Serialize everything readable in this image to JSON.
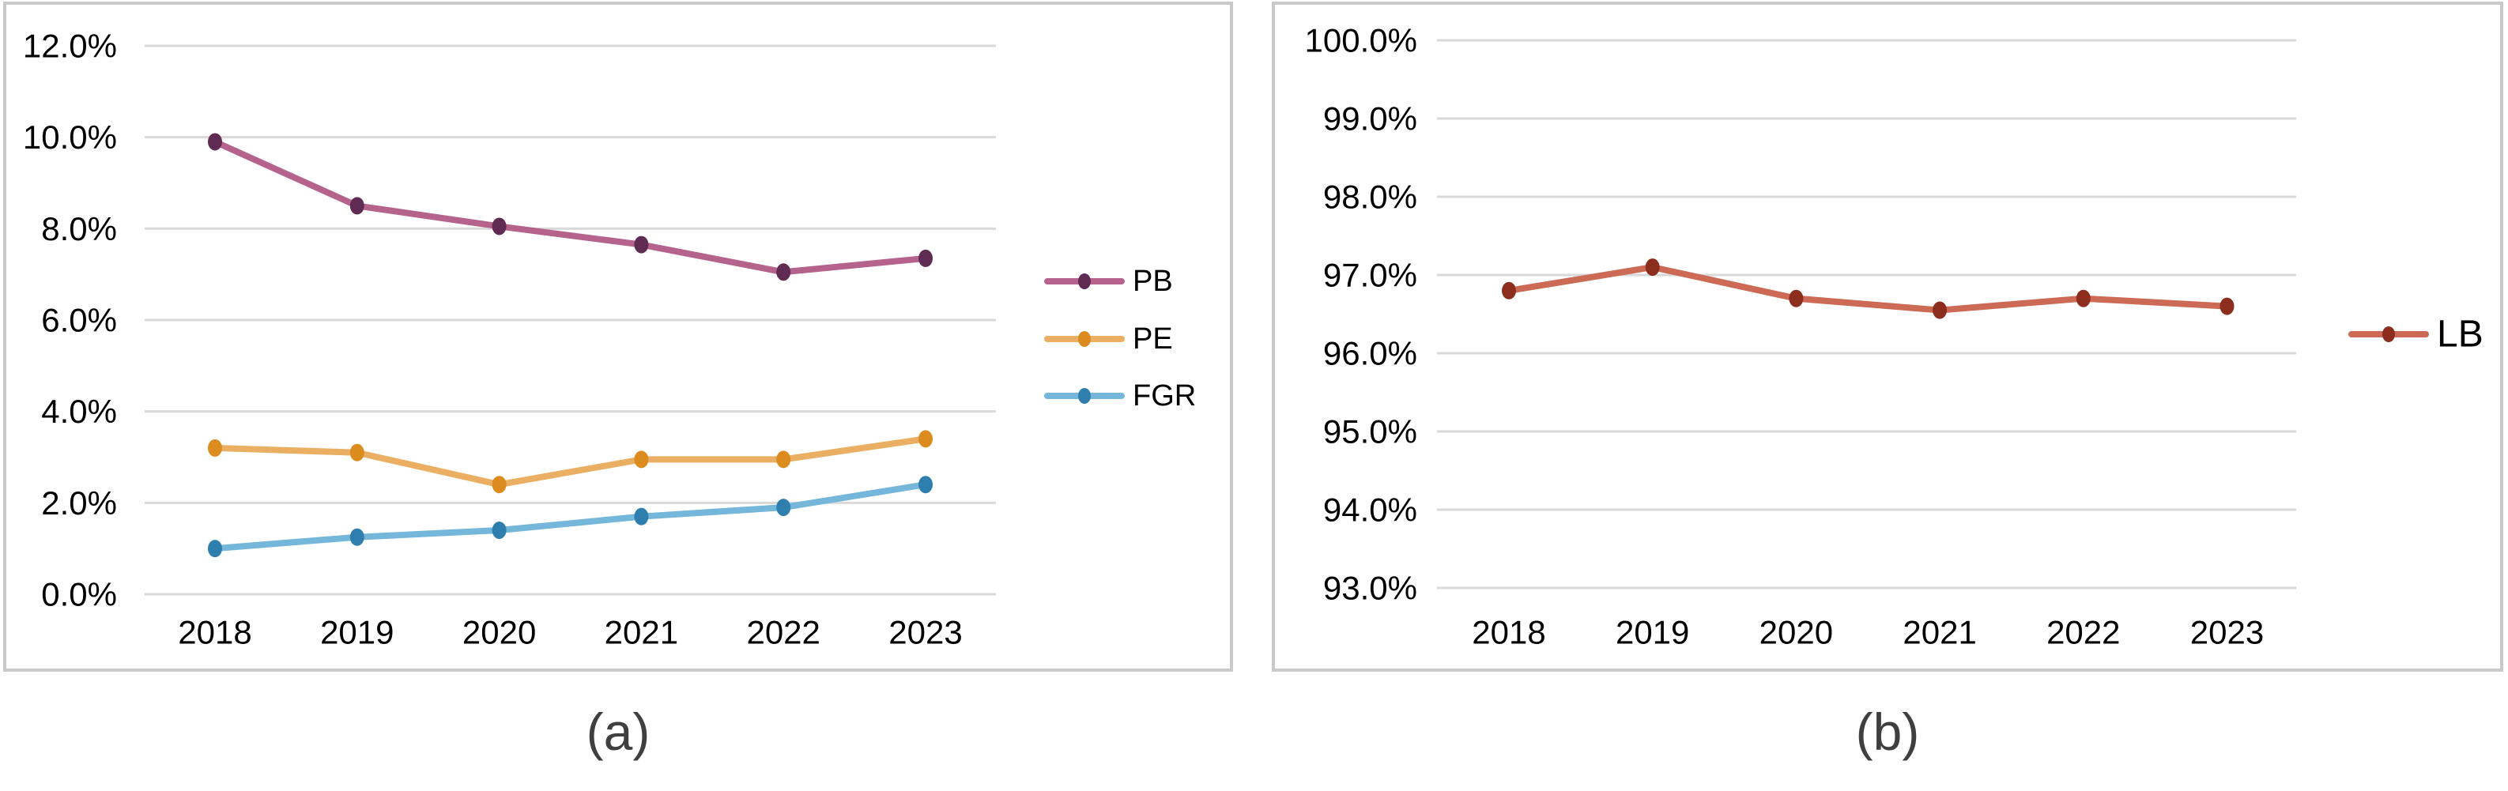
{
  "captions": {
    "a": "(a)",
    "b": "(b)"
  },
  "colors": {
    "gridline": "#d9d9d9",
    "panel_border": "#c9c9c9",
    "axis_text": "#000000",
    "caption_text": "#3f3f3f"
  },
  "chart_data": [
    {
      "id": "chart-a",
      "type": "line",
      "title": "",
      "xlabel": "",
      "ylabel": "",
      "grid": true,
      "legend_position": "right",
      "categories": [
        "2018",
        "2019",
        "2020",
        "2021",
        "2022",
        "2023"
      ],
      "series": [
        {
          "name": "PB",
          "values": [
            9.9,
            8.5,
            8.05,
            7.65,
            7.05,
            7.35
          ],
          "line_color": "#b5638d",
          "marker_color": "#5f2b52"
        },
        {
          "name": "PE",
          "values": [
            3.2,
            3.1,
            2.4,
            2.95,
            2.95,
            3.4
          ],
          "line_color": "#eaaf62",
          "marker_color": "#dc8b1f"
        },
        {
          "name": "FGR",
          "values": [
            1.0,
            1.25,
            1.4,
            1.7,
            1.9,
            2.4
          ],
          "line_color": "#74b7db",
          "marker_color": "#2e7fad"
        }
      ],
      "ylim": [
        0,
        12
      ],
      "ytick_values": [
        0,
        2,
        4,
        6,
        8,
        10,
        12
      ],
      "ytick_labels": [
        "0.0%",
        "2.0%",
        "4.0%",
        "6.0%",
        "8.0%",
        "10.0%",
        "12.0%"
      ]
    },
    {
      "id": "chart-b",
      "type": "line",
      "title": "",
      "xlabel": "",
      "ylabel": "",
      "grid": true,
      "legend_position": "right",
      "categories": [
        "2018",
        "2019",
        "2020",
        "2021",
        "2022",
        "2023"
      ],
      "series": [
        {
          "name": "LB",
          "values": [
            96.8,
            97.1,
            96.7,
            96.55,
            96.7,
            96.6
          ],
          "line_color": "#cc6a55",
          "marker_color": "#8c2d1d"
        }
      ],
      "ylim": [
        93,
        100
      ],
      "ytick_values": [
        93,
        94,
        95,
        96,
        97,
        98,
        99,
        100
      ],
      "ytick_labels": [
        "93.0%",
        "94.0%",
        "95.0%",
        "96.0%",
        "97.0%",
        "98.0%",
        "99.0%",
        "100.0%"
      ]
    }
  ]
}
